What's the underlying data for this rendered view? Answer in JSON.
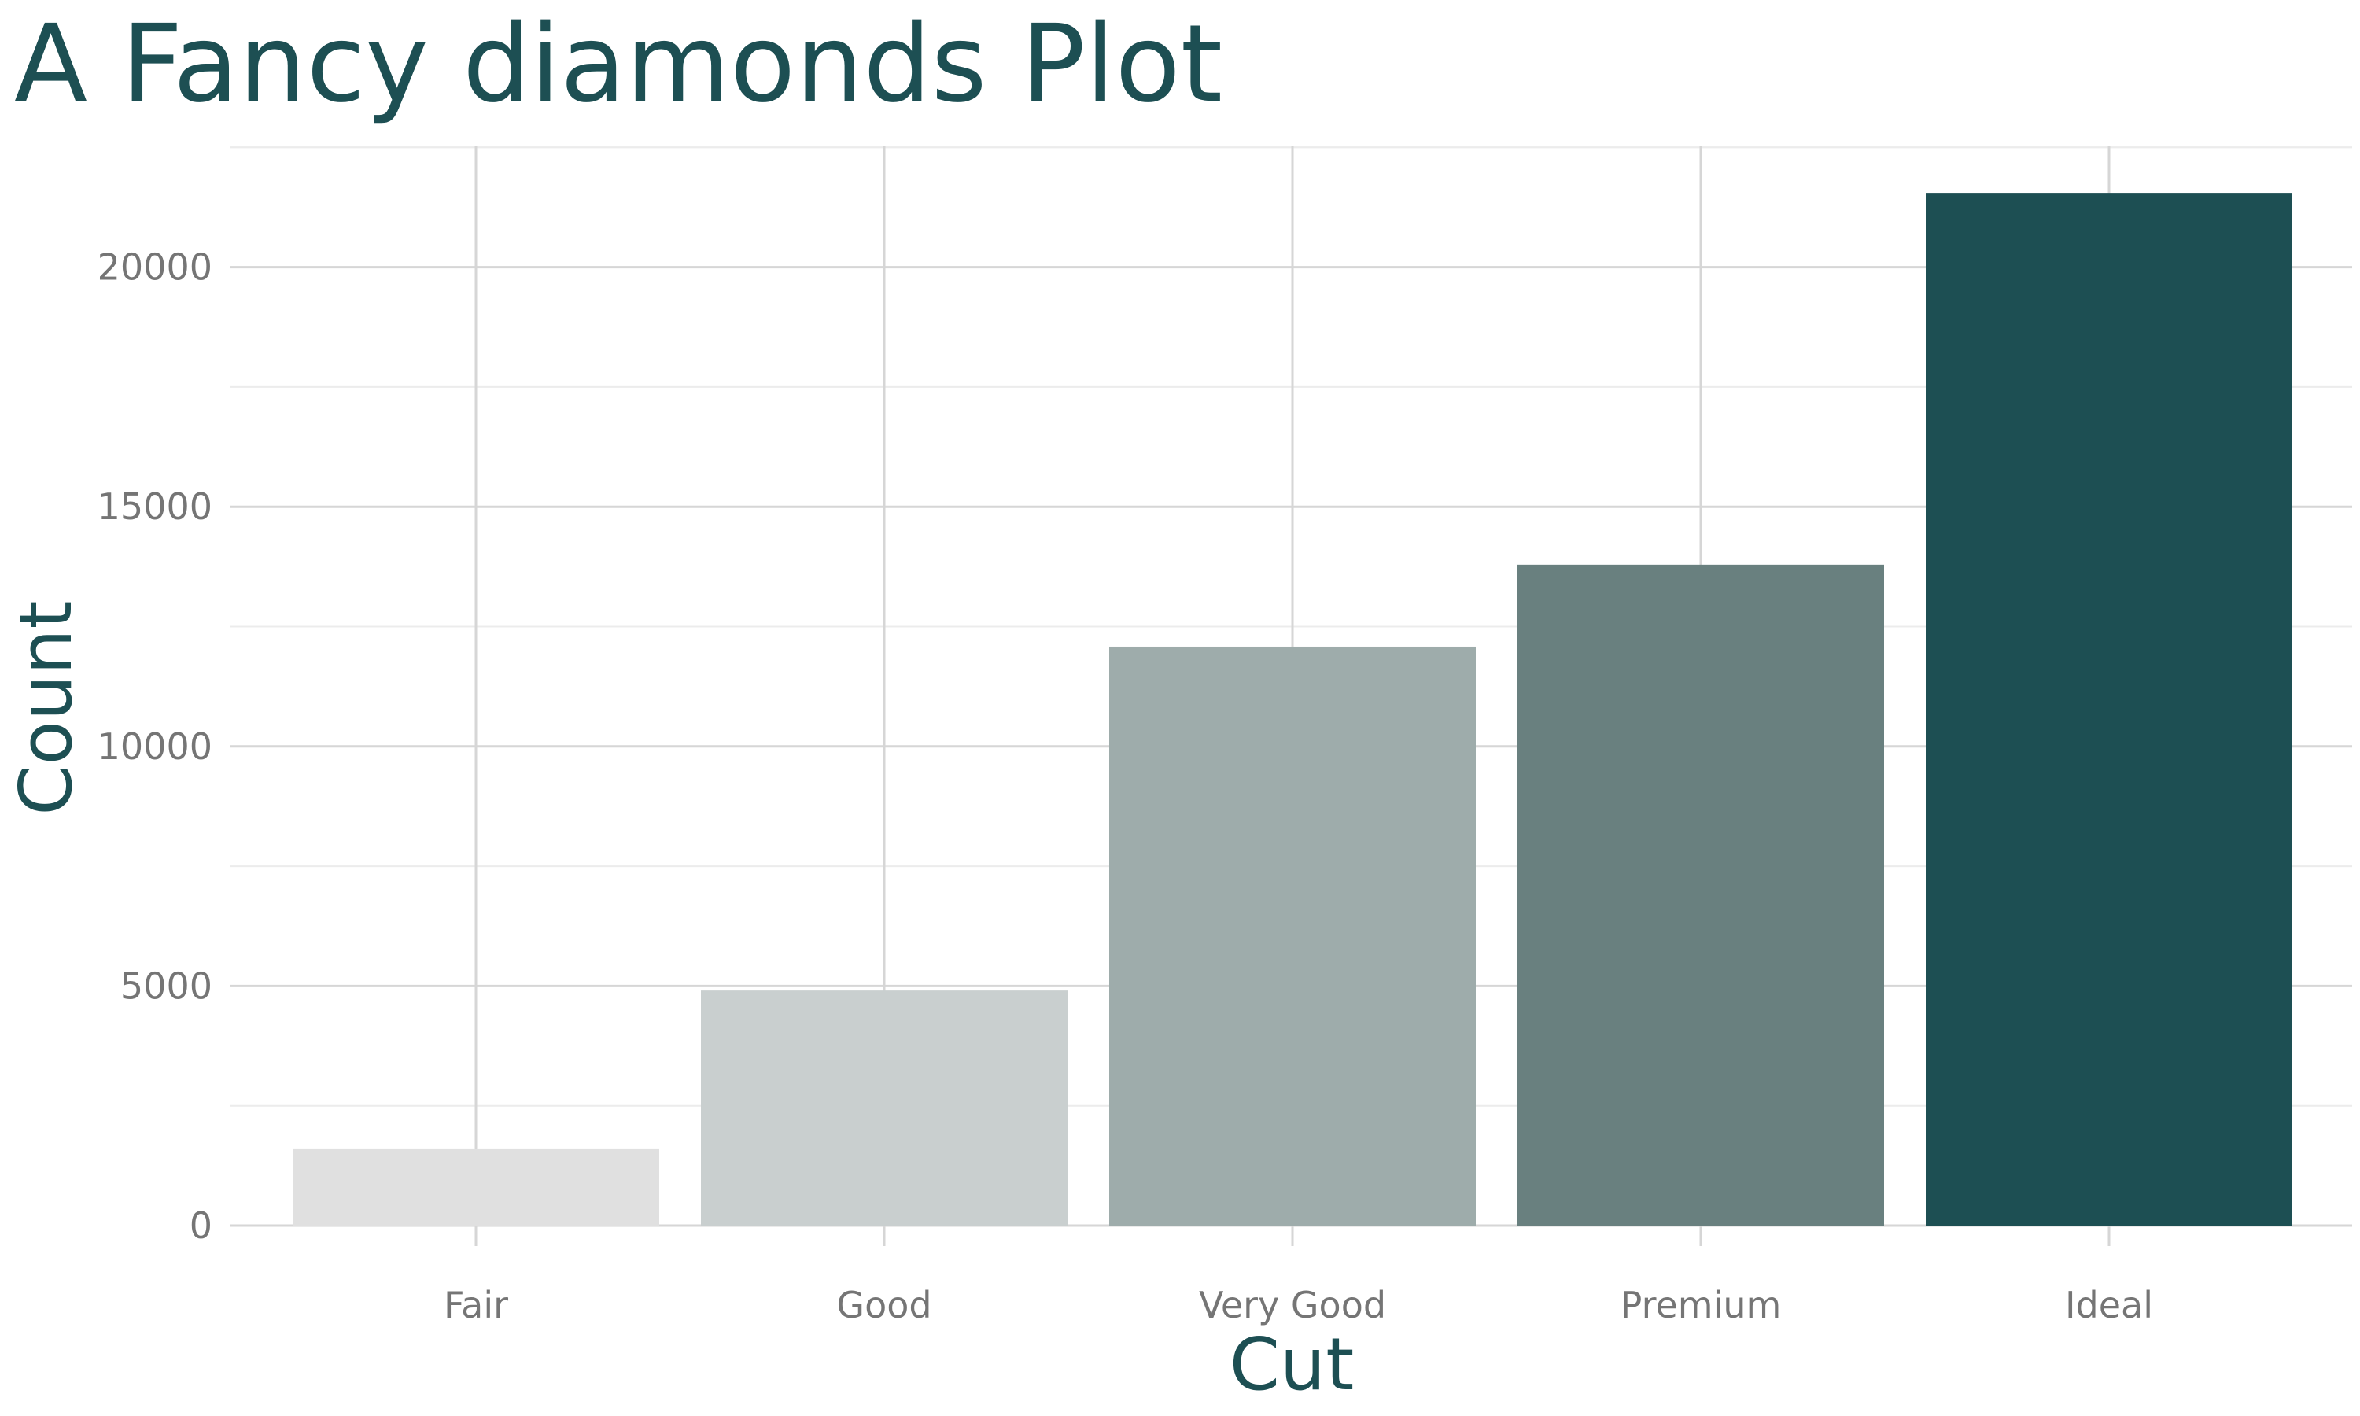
{
  "chart_data": {
    "type": "bar",
    "title": "A Fancy diamonds Plot",
    "xlabel": "Cut",
    "ylabel": "Count",
    "categories": [
      "Fair",
      "Good",
      "Very Good",
      "Premium",
      "Ideal"
    ],
    "values": [
      1610,
      4906,
      12082,
      13791,
      21551
    ],
    "ylim": [
      0,
      22500
    ],
    "yticks": [
      0,
      5000,
      10000,
      15000,
      20000
    ],
    "ytick_labels": [
      "0",
      "5000",
      "10000",
      "15000",
      "20000"
    ],
    "bar_colors": [
      "#e0e0e0",
      "#c9cfcf",
      "#9eacab",
      "#69807f",
      "#1d4f53"
    ],
    "colors": {
      "title": "#1d4f53",
      "axis_title": "#1d4f53",
      "tick_label": "#757575",
      "grid_major": "#d6d6d6",
      "grid_minor": "#ececec",
      "background": "#ffffff"
    },
    "grid": true,
    "legend": "none"
  }
}
